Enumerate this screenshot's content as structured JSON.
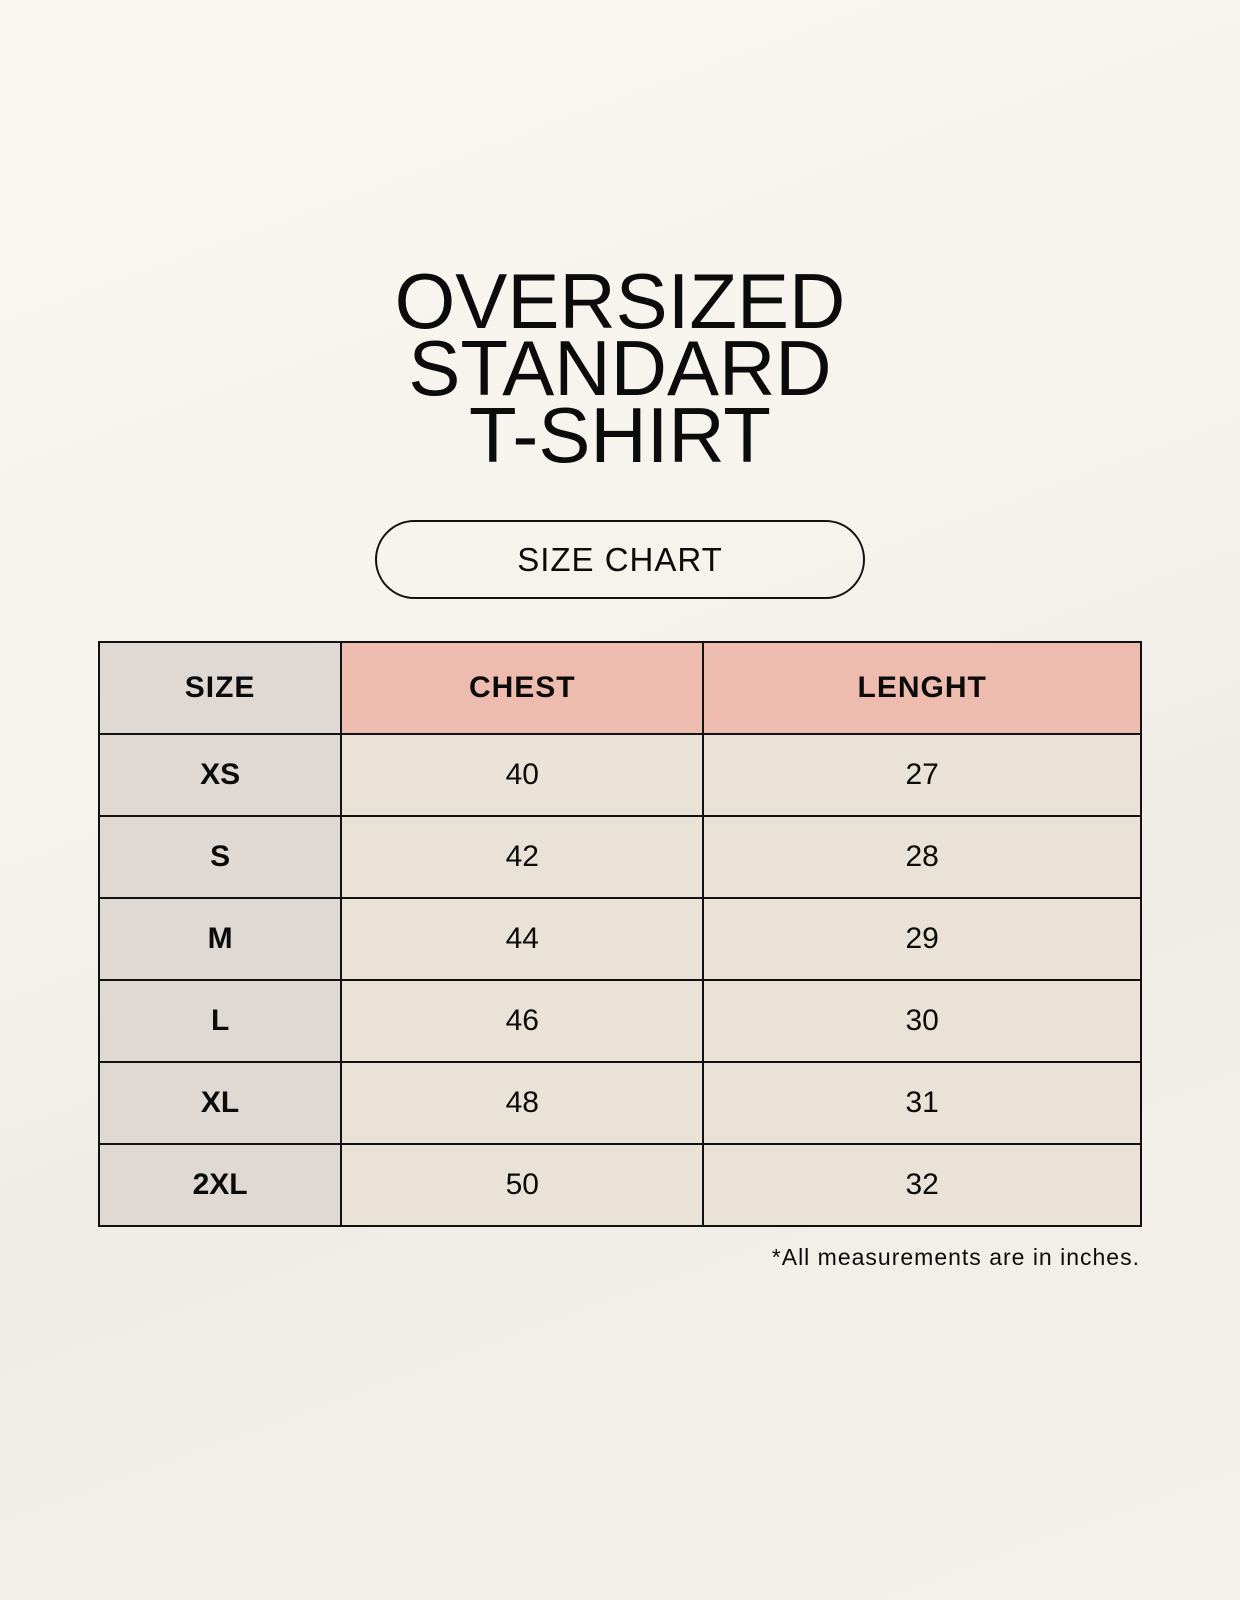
{
  "title_lines": [
    "OVERSIZED",
    "STANDARD",
    "T-SHIRT"
  ],
  "badge": "SIZE CHART",
  "table": {
    "headers": [
      "SIZE",
      "CHEST",
      "LENGHT"
    ],
    "rows": [
      [
        "XS",
        "40",
        "27"
      ],
      [
        "S",
        "42",
        "28"
      ],
      [
        "M",
        "44",
        "29"
      ],
      [
        "L",
        "46",
        "30"
      ],
      [
        "XL",
        "48",
        "31"
      ],
      [
        "2XL",
        "50",
        "32"
      ]
    ]
  },
  "note": "*All measurements are in inches.",
  "colors": {
    "size_column": "#e0d8d3",
    "header_accent": "#eebcae",
    "value_cells": "#eae2d7"
  }
}
